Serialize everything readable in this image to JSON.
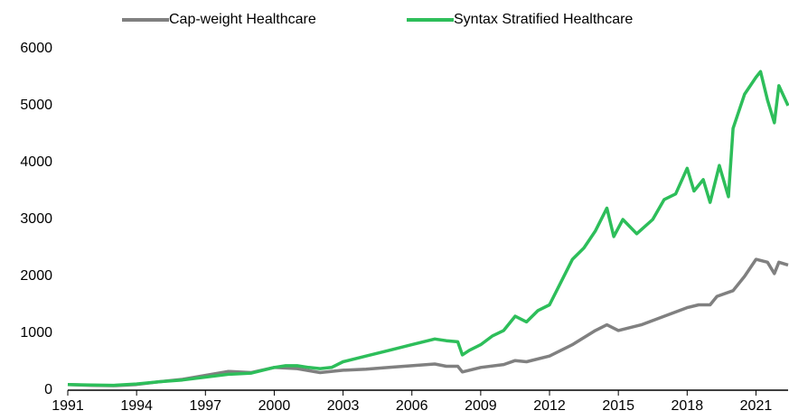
{
  "chart_data": {
    "type": "line",
    "series": [
      {
        "name": "Cap-weight Healthcare",
        "color": "#808080",
        "x": [
          1991,
          1992,
          1993,
          1994,
          1995,
          1996,
          1997,
          1998,
          1999,
          2000,
          2001,
          2002,
          2003,
          2004,
          2005,
          2006,
          2007,
          2007.5,
          2008,
          2008.2,
          2009,
          2010,
          2010.5,
          2011,
          2012,
          2013,
          2014,
          2014.5,
          2015,
          2016,
          2017,
          2018,
          2018.5,
          2019,
          2019.3,
          2020,
          2020.5,
          2021,
          2021.5,
          2021.8,
          2022,
          2022.4
        ],
        "values": [
          100,
          85,
          80,
          100,
          150,
          190,
          260,
          330,
          310,
          400,
          380,
          310,
          350,
          370,
          400,
          430,
          460,
          420,
          420,
          320,
          400,
          450,
          520,
          500,
          600,
          800,
          1050,
          1150,
          1050,
          1150,
          1300,
          1450,
          1500,
          1500,
          1650,
          1750,
          2000,
          2300,
          2250,
          2050,
          2250,
          2200
        ]
      },
      {
        "name": "Syntax Stratified Healthcare",
        "color": "#2dbe5a",
        "x": [
          1991,
          1992,
          1993,
          1994,
          1995,
          1996,
          1997,
          1998,
          1999,
          2000,
          2000.5,
          2001,
          2001.5,
          2002,
          2002.5,
          2003,
          2004,
          2005,
          2006,
          2006.5,
          2007,
          2007.5,
          2008,
          2008.2,
          2008.5,
          2009,
          2009.5,
          2010,
          2010.5,
          2011,
          2011.5,
          2012,
          2012.5,
          2013,
          2013.5,
          2014,
          2014.5,
          2014.8,
          2015.2,
          2015.8,
          2016.5,
          2017,
          2017.5,
          2018,
          2018.3,
          2018.7,
          2019,
          2019.4,
          2019.8,
          2020,
          2020.5,
          2021,
          2021.2,
          2021.5,
          2021.8,
          2022,
          2022.4
        ],
        "values": [
          100,
          90,
          85,
          110,
          150,
          180,
          230,
          280,
          300,
          400,
          430,
          430,
          400,
          380,
          400,
          500,
          600,
          700,
          800,
          850,
          900,
          870,
          850,
          620,
          700,
          800,
          950,
          1050,
          1300,
          1200,
          1400,
          1500,
          1900,
          2300,
          2500,
          2800,
          3200,
          2700,
          3000,
          2750,
          3000,
          3350,
          3450,
          3900,
          3500,
          3700,
          3300,
          3950,
          3400,
          4600,
          5200,
          5500,
          5600,
          5100,
          4700,
          5350,
          5000
        ]
      }
    ],
    "xlim": [
      1991,
      2022.4
    ],
    "xticks": [
      1991,
      1994,
      1997,
      2000,
      2003,
      2006,
      2009,
      2012,
      2015,
      2018,
      2021
    ],
    "ylim": [
      0,
      6000
    ],
    "yticks": [
      0,
      1000,
      2000,
      3000,
      4000,
      5000,
      6000
    ],
    "legend": "top",
    "grid": false
  }
}
